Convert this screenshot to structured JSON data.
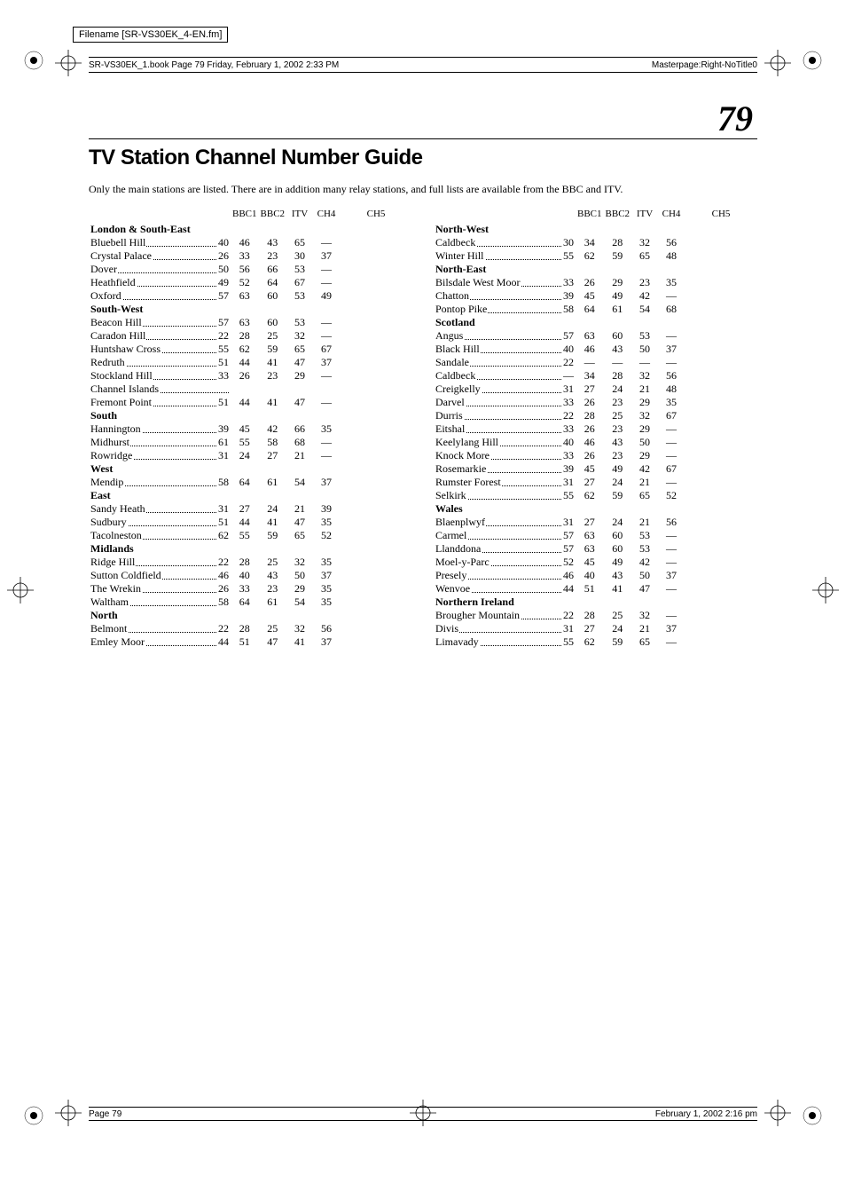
{
  "filename_label": "Filename [SR-VS30EK_4-EN.fm]",
  "header_left": "SR-VS30EK_1.book  Page 79  Friday, February 1, 2002  2:33 PM",
  "header_right": "Masterpage:Right-NoTitle0",
  "page_number": "79",
  "title": "TV Station Channel Number Guide",
  "intro": "Only the main stations are listed. There are in addition many relay stations, and full lists are available from the BBC and ITV.",
  "col_headers": [
    "BBC1",
    "BBC2",
    "ITV",
    "CH4",
    "CH5"
  ],
  "footer_left": "Page 79",
  "footer_right": "February 1, 2002  2:16 pm",
  "colors": {
    "text": "#000000",
    "background": "#ffffff",
    "rule": "#000000"
  },
  "left_regions": [
    {
      "name": "London & South-East",
      "stations": [
        {
          "n": "Bluebell Hill",
          "v": [
            "40",
            "46",
            "43",
            "65",
            "—"
          ]
        },
        {
          "n": "Crystal Palace",
          "v": [
            "26",
            "33",
            "23",
            "30",
            "37"
          ]
        },
        {
          "n": "Dover",
          "v": [
            "50",
            "56",
            "66",
            "53",
            "—"
          ]
        },
        {
          "n": "Heathfield",
          "v": [
            "49",
            "52",
            "64",
            "67",
            "—"
          ]
        },
        {
          "n": "Oxford",
          "v": [
            "57",
            "63",
            "60",
            "53",
            "49"
          ]
        }
      ]
    },
    {
      "name": "South-West",
      "stations": [
        {
          "n": "Beacon Hill",
          "v": [
            "57",
            "63",
            "60",
            "53",
            "—"
          ]
        },
        {
          "n": "Caradon Hill",
          "v": [
            "22",
            "28",
            "25",
            "32",
            "—"
          ]
        },
        {
          "n": "Huntshaw Cross",
          "v": [
            "55",
            "62",
            "59",
            "65",
            "67"
          ]
        },
        {
          "n": "Redruth",
          "v": [
            "51",
            "44",
            "41",
            "47",
            "37"
          ]
        },
        {
          "n": "Stockland Hill",
          "v": [
            "33",
            "26",
            "23",
            "29",
            "—"
          ]
        },
        {
          "n": "Channel Islands",
          "v": [
            "",
            "",
            "",
            "",
            ""
          ]
        },
        {
          "n": "Fremont Point",
          "v": [
            "51",
            "44",
            "41",
            "47",
            "—"
          ]
        }
      ]
    },
    {
      "name": "South",
      "stations": [
        {
          "n": "Hannington",
          "v": [
            "39",
            "45",
            "42",
            "66",
            "35"
          ]
        },
        {
          "n": "Midhurst",
          "v": [
            "61",
            "55",
            "58",
            "68",
            "—"
          ]
        },
        {
          "n": "Rowridge",
          "v": [
            "31",
            "24",
            "27",
            "21",
            "—"
          ]
        }
      ]
    },
    {
      "name": "West",
      "stations": [
        {
          "n": "Mendip",
          "v": [
            "58",
            "64",
            "61",
            "54",
            "37"
          ]
        }
      ]
    },
    {
      "name": "East",
      "stations": [
        {
          "n": "Sandy Heath",
          "v": [
            "31",
            "27",
            "24",
            "21",
            "39"
          ]
        },
        {
          "n": "Sudbury",
          "v": [
            "51",
            "44",
            "41",
            "47",
            "35"
          ]
        },
        {
          "n": "Tacolneston",
          "v": [
            "62",
            "55",
            "59",
            "65",
            "52"
          ]
        }
      ]
    },
    {
      "name": "Midlands",
      "stations": [
        {
          "n": "Ridge Hill",
          "v": [
            "22",
            "28",
            "25",
            "32",
            "35"
          ]
        },
        {
          "n": "Sutton Coldfield",
          "v": [
            "46",
            "40",
            "43",
            "50",
            "37"
          ]
        },
        {
          "n": "The Wrekin",
          "v": [
            "26",
            "33",
            "23",
            "29",
            "35"
          ]
        },
        {
          "n": "Waltham",
          "v": [
            "58",
            "64",
            "61",
            "54",
            "35"
          ]
        }
      ]
    },
    {
      "name": "North",
      "stations": [
        {
          "n": "Belmont",
          "v": [
            "22",
            "28",
            "25",
            "32",
            "56"
          ]
        },
        {
          "n": "Emley Moor",
          "v": [
            "44",
            "51",
            "47",
            "41",
            "37"
          ]
        }
      ]
    }
  ],
  "right_regions": [
    {
      "name": "North-West",
      "stations": [
        {
          "n": "Caldbeck",
          "v": [
            "30",
            "34",
            "28",
            "32",
            "56"
          ]
        },
        {
          "n": "Winter Hill",
          "v": [
            "55",
            "62",
            "59",
            "65",
            "48"
          ]
        }
      ]
    },
    {
      "name": "North-East",
      "stations": [
        {
          "n": "Bilsdale West Moor",
          "v": [
            "33",
            "26",
            "29",
            "23",
            "35"
          ]
        },
        {
          "n": "Chatton",
          "v": [
            "39",
            "45",
            "49",
            "42",
            "—"
          ]
        },
        {
          "n": "Pontop Pike",
          "v": [
            "58",
            "64",
            "61",
            "54",
            "68"
          ]
        }
      ]
    },
    {
      "name": "Scotland",
      "stations": [
        {
          "n": "Angus",
          "v": [
            "57",
            "63",
            "60",
            "53",
            "—"
          ]
        },
        {
          "n": "Black Hill",
          "v": [
            "40",
            "46",
            "43",
            "50",
            "37"
          ]
        },
        {
          "n": "Sandale",
          "v": [
            "22",
            "—",
            "—",
            "—",
            "—"
          ]
        },
        {
          "n": "Caldbeck",
          "v": [
            "—",
            "34",
            "28",
            "32",
            "56"
          ]
        },
        {
          "n": "Creigkelly",
          "v": [
            "31",
            "27",
            "24",
            "21",
            "48"
          ]
        },
        {
          "n": "Darvel",
          "v": [
            "33",
            "26",
            "23",
            "29",
            "35"
          ]
        },
        {
          "n": "Durris",
          "v": [
            "22",
            "28",
            "25",
            "32",
            "67"
          ]
        },
        {
          "n": "Eitshal",
          "v": [
            "33",
            "26",
            "23",
            "29",
            "—"
          ]
        },
        {
          "n": "Keelylang Hill",
          "v": [
            "40",
            "46",
            "43",
            "50",
            "—"
          ]
        },
        {
          "n": "Knock More",
          "v": [
            "33",
            "26",
            "23",
            "29",
            "—"
          ]
        },
        {
          "n": "Rosemarkie",
          "v": [
            "39",
            "45",
            "49",
            "42",
            "67"
          ]
        },
        {
          "n": "Rumster Forest",
          "v": [
            "31",
            "27",
            "24",
            "21",
            "—"
          ]
        },
        {
          "n": "Selkirk",
          "v": [
            "55",
            "62",
            "59",
            "65",
            "52"
          ]
        }
      ]
    },
    {
      "name": "Wales",
      "stations": [
        {
          "n": "Blaenplwyf",
          "v": [
            "31",
            "27",
            "24",
            "21",
            "56"
          ]
        },
        {
          "n": "Carmel",
          "v": [
            "57",
            "63",
            "60",
            "53",
            "—"
          ]
        },
        {
          "n": "Llanddona",
          "v": [
            "57",
            "63",
            "60",
            "53",
            "—"
          ]
        },
        {
          "n": "Moel-y-Parc",
          "v": [
            "52",
            "45",
            "49",
            "42",
            "—"
          ]
        },
        {
          "n": "Presely",
          "v": [
            "46",
            "40",
            "43",
            "50",
            "37"
          ]
        },
        {
          "n": "Wenvoe",
          "v": [
            "44",
            "51",
            "41",
            "47",
            "—"
          ]
        }
      ]
    },
    {
      "name": "Northern Ireland",
      "stations": [
        {
          "n": "Brougher Mountain",
          "v": [
            "22",
            "28",
            "25",
            "32",
            "—"
          ]
        },
        {
          "n": "Divis",
          "v": [
            "31",
            "27",
            "24",
            "21",
            "37"
          ]
        },
        {
          "n": "Limavady",
          "v": [
            "55",
            "62",
            "59",
            "65",
            "—"
          ]
        }
      ]
    }
  ]
}
